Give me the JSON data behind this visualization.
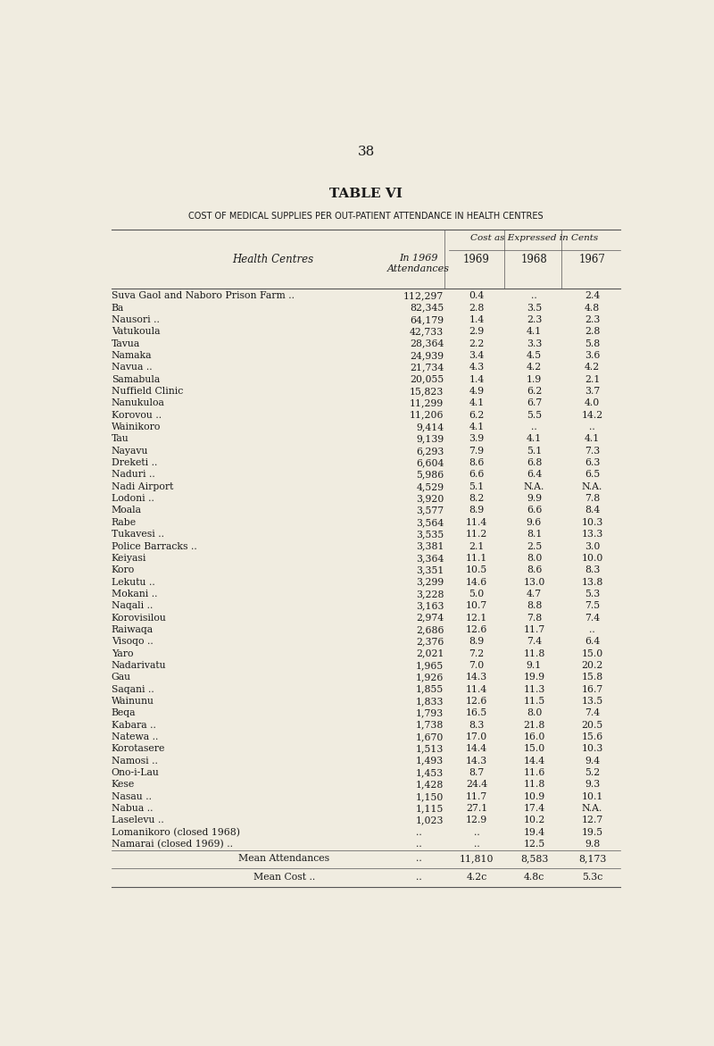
{
  "page_number": "38",
  "title": "TABLE VI",
  "subtitle": "COST OF MEDICAL SUPPLIES PER OUT-PATIENT ATTENDANCE IN HEALTH CENTRES",
  "col_header_group": "Cost as Expressed in Cents",
  "rows": [
    [
      "Suva Gaol and Naboro Prison Farm ..",
      "112,297",
      "0.4",
      "..",
      "2.4"
    ],
    [
      "Ba",
      "82,345",
      "2.8",
      "3.5",
      "4.8"
    ],
    [
      "Nausori ..",
      "64,179",
      "1.4",
      "2.3",
      "2.3"
    ],
    [
      "Vatukoula",
      "42,733",
      "2.9",
      "4.1",
      "2.8"
    ],
    [
      "Tavua",
      "28,364",
      "2.2",
      "3.3",
      "5.8"
    ],
    [
      "Namaka",
      "24,939",
      "3.4",
      "4.5",
      "3.6"
    ],
    [
      "Navua ..",
      "21,734",
      "4.3",
      "4.2",
      "4.2"
    ],
    [
      "Samabula",
      "20,055",
      "1.4",
      "1.9",
      "2.1"
    ],
    [
      "Nuffield Clinic",
      "15,823",
      "4.9",
      "6.2",
      "3.7"
    ],
    [
      "Nanukuloa",
      "11,299",
      "4.1",
      "6.7",
      "4.0"
    ],
    [
      "Korovou ..",
      "11,206",
      "6.2",
      "5.5",
      "14.2"
    ],
    [
      "Wainikoro",
      "9,414",
      "4.1",
      "..",
      ".."
    ],
    [
      "Tau",
      "9,139",
      "3.9",
      "4.1",
      "4.1"
    ],
    [
      "Nayavu",
      "6,293",
      "7.9",
      "5.1",
      "7.3"
    ],
    [
      "Dreketi ..",
      "6,604",
      "8.6",
      "6.8",
      "6.3"
    ],
    [
      "Naduri ..",
      "5,986",
      "6.6",
      "6.4",
      "6.5"
    ],
    [
      "Nadi Airport",
      "4,529",
      "5.1",
      "N.A.",
      "N.A."
    ],
    [
      "Lodoni ..",
      "3,920",
      "8.2",
      "9.9",
      "7.8"
    ],
    [
      "Moala",
      "3,577",
      "8.9",
      "6.6",
      "8.4"
    ],
    [
      "Rabe",
      "3,564",
      "11.4",
      "9.6",
      "10.3"
    ],
    [
      "Tukavesi ..",
      "3,535",
      "11.2",
      "8.1",
      "13.3"
    ],
    [
      "Police Barracks ..",
      "3,381",
      "2.1",
      "2.5",
      "3.0"
    ],
    [
      "Keiyasi",
      "3,364",
      "11.1",
      "8.0",
      "10.0"
    ],
    [
      "Koro",
      "3,351",
      "10.5",
      "8.6",
      "8.3"
    ],
    [
      "Lekutu ..",
      "3,299",
      "14.6",
      "13.0",
      "13.8"
    ],
    [
      "Mokani ..",
      "3,228",
      "5.0",
      "4.7",
      "5.3"
    ],
    [
      "Naqali ..",
      "3,163",
      "10.7",
      "8.8",
      "7.5"
    ],
    [
      "Korovisilou",
      "2,974",
      "12.1",
      "7.8",
      "7.4"
    ],
    [
      "Raiwaqa",
      "2,686",
      "12.6",
      "11.7",
      ".."
    ],
    [
      "Visoqo ..",
      "2,376",
      "8.9",
      "7.4",
      "6.4"
    ],
    [
      "Yaro",
      "2,021",
      "7.2",
      "11.8",
      "15.0"
    ],
    [
      "Nadarivatu",
      "1,965",
      "7.0",
      "9.1",
      "20.2"
    ],
    [
      "Gau",
      "1,926",
      "14.3",
      "19.9",
      "15.8"
    ],
    [
      "Saqani ..",
      "1,855",
      "11.4",
      "11.3",
      "16.7"
    ],
    [
      "Wainunu",
      "1,833",
      "12.6",
      "11.5",
      "13.5"
    ],
    [
      "Beqa",
      "1,793",
      "16.5",
      "8.0",
      "7.4"
    ],
    [
      "Kabara ..",
      "1,738",
      "8.3",
      "21.8",
      "20.5"
    ],
    [
      "Natewa ..",
      "1,670",
      "17.0",
      "16.0",
      "15.6"
    ],
    [
      "Korotasere",
      "1,513",
      "14.4",
      "15.0",
      "10.3"
    ],
    [
      "Namosi ..",
      "1,493",
      "14.3",
      "14.4",
      "9.4"
    ],
    [
      "Ono-i-Lau",
      "1,453",
      "8.7",
      "11.6",
      "5.2"
    ],
    [
      "Kese",
      "1,428",
      "24.4",
      "11.8",
      "9.3"
    ],
    [
      "Nasau ..",
      "1,150",
      "11.7",
      "10.9",
      "10.1"
    ],
    [
      "Nabua ..",
      "1,115",
      "27.1",
      "17.4",
      "N.A."
    ],
    [
      "Laselevu ..",
      "1,023",
      "12.9",
      "10.2",
      "12.7"
    ],
    [
      "Lomanikoro (closed 1968)",
      "..",
      "..",
      "19.4",
      "19.5"
    ],
    [
      "Namarai (closed 1969) ..",
      "..",
      "..",
      "12.5",
      "9.8"
    ]
  ],
  "mean_row_label": "Mean Attendances",
  "mean_cost_label": "Mean Cost ..",
  "mean_att_vals": [
    "11,810",
    "8,583",
    "8,173"
  ],
  "mean_cost_vals": [
    "4.2c",
    "4.8c",
    "5.3c"
  ],
  "bg_color": "#f0ece0",
  "text_color": "#1a1a1a",
  "line_color": "#555555"
}
